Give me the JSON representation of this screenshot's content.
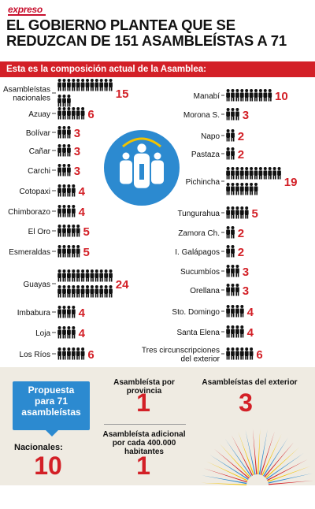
{
  "brand": "expreso",
  "headline": "EL GOBIERNO PLANTEA QUE SE REDUZCAN DE 151 ASAMBLEÍSTAS A 71",
  "section_title": "Esta es la composición actual de la Asamblea:",
  "colors": {
    "red": "#d32027",
    "blue": "#2c8ad0",
    "icon": "#111111",
    "beige": "#efebe2"
  },
  "icons": {
    "person": "person-icon",
    "center": "assembly-group-icon"
  },
  "chart_data": {
    "type": "bar",
    "unit_icon": "person-icon",
    "left": [
      {
        "label": "Asambleístas nacionales",
        "lines": [
          "Asambleístas",
          "nacionales"
        ],
        "value": 15
      },
      {
        "label": "Azuay",
        "lines": [
          "Azuay"
        ],
        "value": 6
      },
      {
        "label": "Bolívar",
        "lines": [
          "Bolívar"
        ],
        "value": 3
      },
      {
        "label": "Cañar",
        "lines": [
          "Cañar"
        ],
        "value": 3
      },
      {
        "label": "Carchi",
        "lines": [
          "Carchi"
        ],
        "value": 3
      },
      {
        "label": "Cotopaxi",
        "lines": [
          "Cotopaxi"
        ],
        "value": 4
      },
      {
        "label": "Chimborazo",
        "lines": [
          "Chimborazo"
        ],
        "value": 4
      },
      {
        "label": "El Oro",
        "lines": [
          "El Oro"
        ],
        "value": 5
      },
      {
        "label": "Esmeraldas",
        "lines": [
          "Esmeraldas"
        ],
        "value": 5
      },
      {
        "label": "Guayas",
        "lines": [
          "Guayas"
        ],
        "value": 24
      },
      {
        "label": "Imbabura",
        "lines": [
          "Imbabura"
        ],
        "value": 4
      },
      {
        "label": "Loja",
        "lines": [
          "Loja"
        ],
        "value": 4
      },
      {
        "label": "Los Ríos",
        "lines": [
          "Los Ríos"
        ],
        "value": 6
      }
    ],
    "right": [
      {
        "label": "Manabí",
        "lines": [
          "Manabí"
        ],
        "value": 10
      },
      {
        "label": "Morona S.",
        "lines": [
          "Morona S."
        ],
        "value": 3
      },
      {
        "label": "Napo",
        "lines": [
          "Napo"
        ],
        "value": 2
      },
      {
        "label": "Pastaza",
        "lines": [
          "Pastaza"
        ],
        "value": 2
      },
      {
        "label": "Pichincha",
        "lines": [
          "Pichincha"
        ],
        "value": 19
      },
      {
        "label": "Tungurahua",
        "lines": [
          "Tungurahua"
        ],
        "value": 5
      },
      {
        "label": "Zamora Ch.",
        "lines": [
          "Zamora Ch."
        ],
        "value": 2
      },
      {
        "label": "I. Galápagos",
        "lines": [
          "I. Galápagos"
        ],
        "value": 2
      },
      {
        "label": "Sucumbíos",
        "lines": [
          "Sucumbíos"
        ],
        "value": 3
      },
      {
        "label": "Orellana",
        "lines": [
          "Orellana"
        ],
        "value": 3
      },
      {
        "label": "Sto. Domingo",
        "lines": [
          "Sto. Domingo"
        ],
        "value": 4
      },
      {
        "label": "Santa Elena",
        "lines": [
          "Santa Elena"
        ],
        "value": 4
      },
      {
        "label": "Tres circunscripciones del exterior",
        "lines": [
          "Tres circunscripciones",
          "del exterior"
        ],
        "value": 6
      }
    ]
  },
  "proposal": {
    "title_lines": [
      "Propuesta",
      "para 71",
      "asambleístas"
    ],
    "nacionales_label": "Nacionales:",
    "nacionales_value": "10",
    "por_provincia_label": "Asambleísta por provincia",
    "por_provincia_value": "1",
    "exterior_label": "Asambleístas del exterior",
    "exterior_value": "3",
    "adicional_label": "Asambleísta adicional por cada 400.000 habitantes",
    "adicional_value": "1"
  }
}
